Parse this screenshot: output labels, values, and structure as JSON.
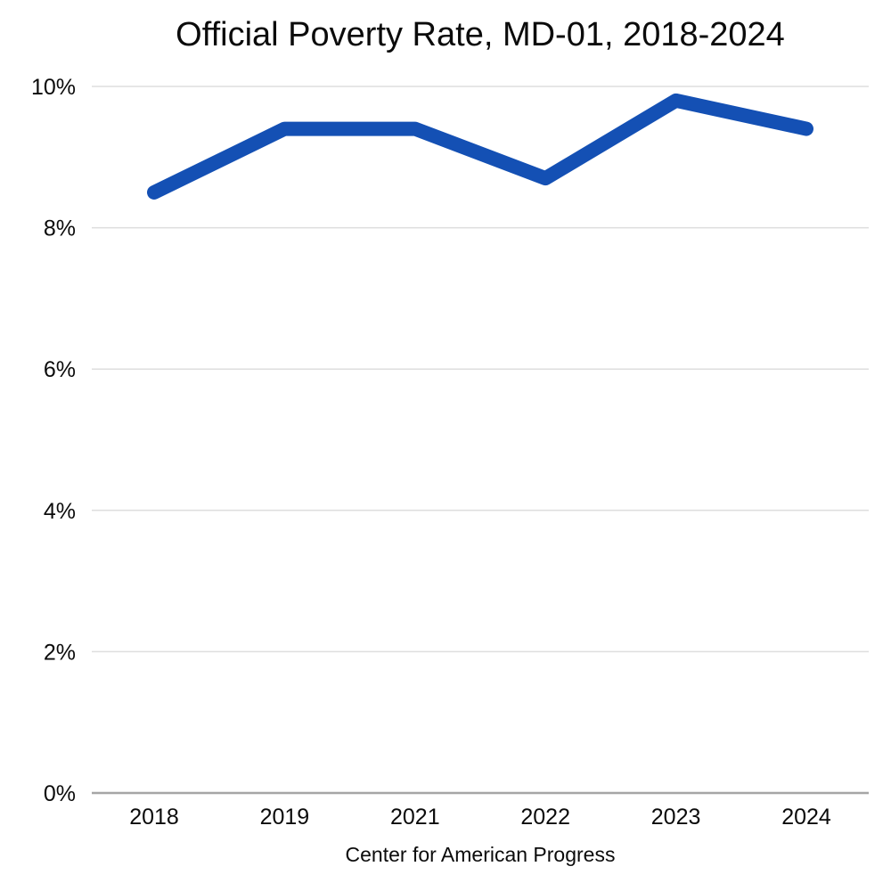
{
  "chart_data": {
    "type": "line",
    "title": "Official Poverty Rate, MD-01, 2018-2024",
    "footer": "Center for American Progress",
    "categories": [
      "2018",
      "2019",
      "2021",
      "2022",
      "2023",
      "2024"
    ],
    "series": [
      {
        "name": "Official Poverty Rate",
        "values": [
          8.5,
          9.4,
          9.4,
          8.7,
          9.8,
          9.4
        ]
      }
    ],
    "xlabel": "",
    "ylabel": "",
    "ylim": [
      0,
      10
    ],
    "yticks": [
      0,
      2,
      4,
      6,
      8,
      10
    ],
    "ytick_suffix": "%",
    "grid": "horizontal",
    "legend_position": "none",
    "colors": {
      "line": "#1450b4",
      "gridline": "#dedede",
      "axis_line": "#a6a6a6",
      "text": "#0b0b0b"
    }
  }
}
